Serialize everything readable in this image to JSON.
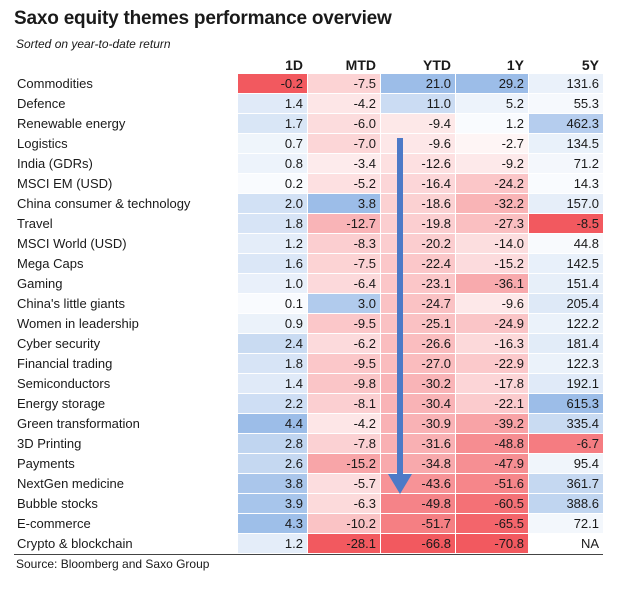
{
  "header": {
    "title": "Saxo equity themes performance overview",
    "subtitle": "Sorted on year-to-date return"
  },
  "columns": [
    "1D",
    "MTD",
    "YTD",
    "1Y",
    "5Y"
  ],
  "source": "Source: Bloomberg and Saxo Group",
  "colors": {
    "positive": "#9cbde8",
    "negative": "#f2595f",
    "neutral": "#ffffff"
  },
  "chart_data": {
    "type": "table",
    "title": "Saxo equity themes performance overview",
    "subtitle": "Sorted on year-to-date return",
    "columns": [
      "1D",
      "MTD",
      "YTD",
      "1Y",
      "5Y"
    ],
    "rows": [
      {
        "name": "Commodities",
        "values": [
          -0.2,
          -7.5,
          21.0,
          29.2,
          131.6
        ]
      },
      {
        "name": "Defence",
        "values": [
          1.4,
          -4.2,
          11.0,
          5.2,
          55.3
        ]
      },
      {
        "name": "Renewable energy",
        "values": [
          1.7,
          -6.0,
          -9.4,
          1.2,
          462.3
        ]
      },
      {
        "name": "Logistics",
        "values": [
          0.7,
          -7.0,
          -9.6,
          -2.7,
          134.5
        ]
      },
      {
        "name": "India (GDRs)",
        "values": [
          0.8,
          -3.4,
          -12.6,
          -9.2,
          71.2
        ]
      },
      {
        "name": "MSCI EM (USD)",
        "values": [
          0.2,
          -5.2,
          -16.4,
          -24.2,
          14.3
        ]
      },
      {
        "name": "China consumer & technology",
        "values": [
          2.0,
          3.8,
          -18.6,
          -32.2,
          157.0
        ]
      },
      {
        "name": "Travel",
        "values": [
          1.8,
          -12.7,
          -19.8,
          -27.3,
          -8.5
        ]
      },
      {
        "name": "MSCI World (USD)",
        "values": [
          1.2,
          -8.3,
          -20.2,
          -14.0,
          44.8
        ]
      },
      {
        "name": "Mega Caps",
        "values": [
          1.6,
          -7.5,
          -22.4,
          -15.2,
          142.5
        ]
      },
      {
        "name": "Gaming",
        "values": [
          1.0,
          -6.4,
          -23.1,
          -36.1,
          151.4
        ]
      },
      {
        "name": "China's little giants",
        "values": [
          0.1,
          3.0,
          -24.7,
          -9.6,
          205.4
        ]
      },
      {
        "name": "Women in leadership",
        "values": [
          0.9,
          -9.5,
          -25.1,
          -24.9,
          122.2
        ]
      },
      {
        "name": "Cyber security",
        "values": [
          2.4,
          -6.2,
          -26.6,
          -16.3,
          181.4
        ]
      },
      {
        "name": "Financial trading",
        "values": [
          1.8,
          -9.5,
          -27.0,
          -22.9,
          122.3
        ]
      },
      {
        "name": "Semiconductors",
        "values": [
          1.4,
          -9.8,
          -30.2,
          -17.8,
          192.1
        ]
      },
      {
        "name": "Energy storage",
        "values": [
          2.2,
          -8.1,
          -30.4,
          -22.1,
          615.3
        ]
      },
      {
        "name": "Green transformation",
        "values": [
          4.4,
          -4.2,
          -30.9,
          -39.2,
          335.4
        ]
      },
      {
        "name": "3D Printing",
        "values": [
          2.8,
          -7.8,
          -31.6,
          -48.8,
          -6.7
        ]
      },
      {
        "name": "Payments",
        "values": [
          2.6,
          -15.2,
          -34.8,
          -47.9,
          95.4
        ]
      },
      {
        "name": "NextGen medicine",
        "values": [
          3.8,
          -5.7,
          -43.6,
          -51.6,
          361.7
        ]
      },
      {
        "name": "Bubble stocks",
        "values": [
          3.9,
          -6.3,
          -49.8,
          -60.5,
          388.6
        ]
      },
      {
        "name": "E-commerce",
        "values": [
          4.3,
          -10.2,
          -51.7,
          -65.5,
          72.1
        ]
      },
      {
        "name": "Crypto & blockchain",
        "values": [
          1.2,
          -28.1,
          -66.8,
          -70.8,
          "NA"
        ]
      }
    ]
  }
}
